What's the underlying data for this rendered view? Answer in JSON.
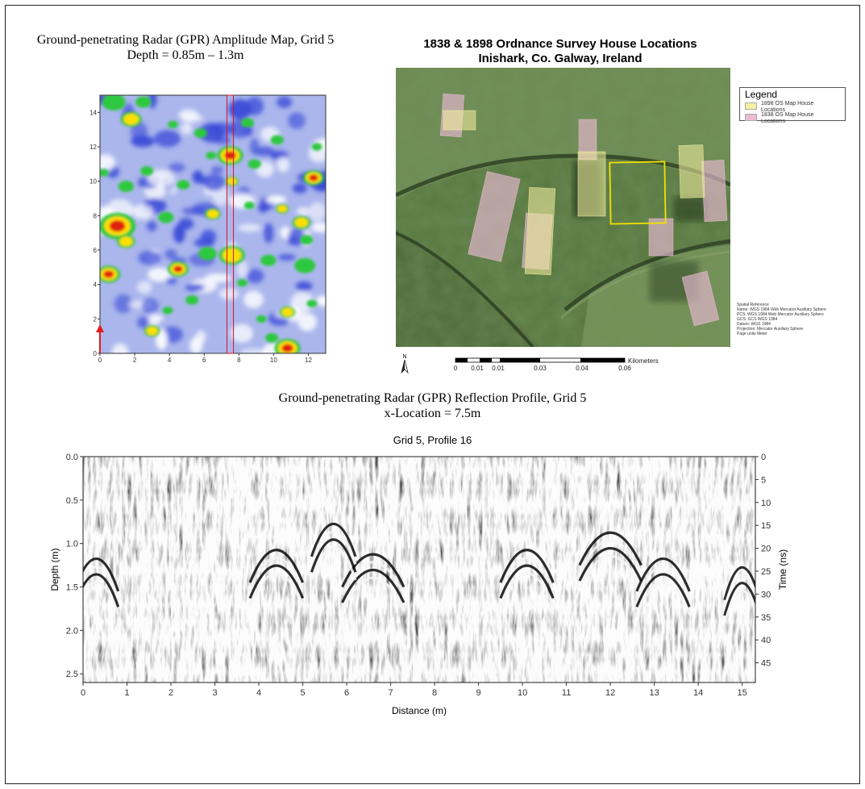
{
  "amplitude_map": {
    "title": "Ground-penetrating Radar (GPR) Amplitude Map, Grid 5",
    "subtitle": "Depth = 0.85m – 1.3m"
  },
  "os_map": {
    "title_line1": "1838 & 1898 Ordnance Survey House Locations",
    "title_line2": "Inishark, Co. Galway, Ireland",
    "legend": {
      "title": "Legend",
      "items": [
        {
          "label_l1": "1898 OS Map House",
          "label_l2": "Locations",
          "color": "#f4f0a0"
        },
        {
          "label_l1": "1838 OS Map House",
          "label_l2": "Locations",
          "color": "#ecbcd4"
        }
      ]
    },
    "spatial_reference": [
      "Spatial Reference",
      "Name: WGS 1984 Web Mercator Auxiliary Sphere",
      "PCS: WGS 1984 Web Mercator Auxiliary Sphere",
      "GCS: GCS WGS 1984",
      "Datum: WGS 1984",
      "Projection: Mercator Auxiliary Sphere",
      "Page units Meter"
    ],
    "north_label": "N",
    "scale_unit": "Kilometers",
    "scale_labels": [
      "0",
      "0.01",
      "0.01",
      "0.03",
      "0.04",
      "0.06"
    ]
  },
  "profile_section": {
    "title": "Ground-penetrating Radar (GPR) Reflection Profile, Grid 5",
    "subtitle": "x-Location = 7.5m"
  },
  "chart_data": [
    {
      "type": "heatmap",
      "x_ticks": [
        "0",
        "2",
        "4",
        "6",
        "8",
        "10",
        "12"
      ],
      "y_ticks": [
        "0",
        "2",
        "4",
        "6",
        "8",
        "10",
        "12",
        "14"
      ],
      "xlim": [
        0,
        13
      ],
      "ylim": [
        0,
        15
      ],
      "profile_line_x": 7.5,
      "colors": [
        "#ffffff",
        "#3a4ad8",
        "#2fc840",
        "#ffe000",
        "#e02010"
      ]
    },
    {
      "type": "heatmap",
      "title": "Grid 5, Profile 16",
      "xlabel": "Distance (m)",
      "ylabel": "Depth (m)",
      "y2label": "Time (ns)",
      "xlim": [
        0,
        15.3
      ],
      "ylim": [
        2.6,
        0
      ],
      "x_ticks": [
        "0",
        "1",
        "2",
        "3",
        "4",
        "5",
        "6",
        "7",
        "8",
        "9",
        "10",
        "11",
        "12",
        "13",
        "14",
        "15"
      ],
      "y_ticks": [
        "0.0",
        "0.5",
        "1.0",
        "1.5",
        "2.0",
        "2.5"
      ],
      "y2_ticks": [
        "0",
        "5",
        "10",
        "15",
        "20",
        "25",
        "30",
        "35",
        "40",
        "45"
      ]
    }
  ]
}
